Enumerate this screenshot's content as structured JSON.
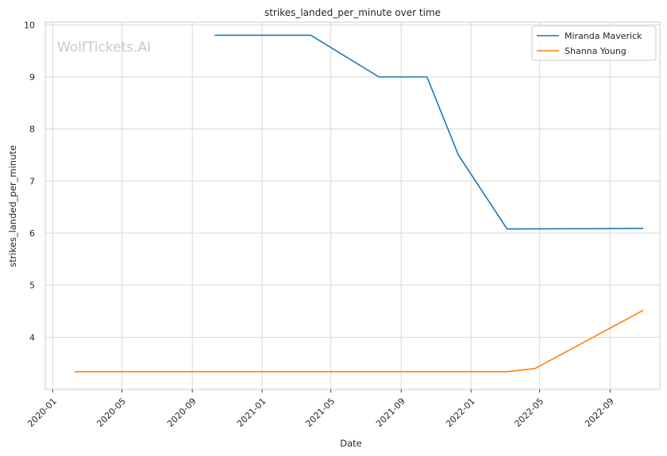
{
  "chart_data": {
    "type": "line",
    "title": "strikes_landed_per_minute over time",
    "xlabel": "Date",
    "ylabel": "strikes_landed_per_minute",
    "watermark": "WolfTickets.AI",
    "ylim": [
      3.0,
      10.05
    ],
    "xlim": [
      "2019-12-19",
      "2022-11-27"
    ],
    "grid": true,
    "legend_position": "top-right",
    "y_ticks": [
      4,
      5,
      6,
      7,
      8,
      9,
      10
    ],
    "x_ticks": [
      "2020-01",
      "2020-05",
      "2020-09",
      "2021-01",
      "2021-05",
      "2021-09",
      "2022-01",
      "2022-05",
      "2022-09"
    ],
    "series": [
      {
        "name": "Miranda Maverick",
        "color": "#1f77b4",
        "points": [
          {
            "x": "2020-10-10",
            "y": 9.8
          },
          {
            "x": "2021-03-27",
            "y": 9.8
          },
          {
            "x": "2021-07-24",
            "y": 9.0
          },
          {
            "x": "2021-10-16",
            "y": 9.0
          },
          {
            "x": "2021-12-10",
            "y": 7.5
          },
          {
            "x": "2022-03-05",
            "y": 6.08
          },
          {
            "x": "2022-10-29",
            "y": 6.09
          }
        ]
      },
      {
        "name": "Shanna Young",
        "color": "#ff7f0e",
        "points": [
          {
            "x": "2020-02-08",
            "y": 3.34
          },
          {
            "x": "2022-03-05",
            "y": 3.34
          },
          {
            "x": "2022-04-23",
            "y": 3.4
          },
          {
            "x": "2022-10-29",
            "y": 4.52
          }
        ]
      }
    ]
  }
}
